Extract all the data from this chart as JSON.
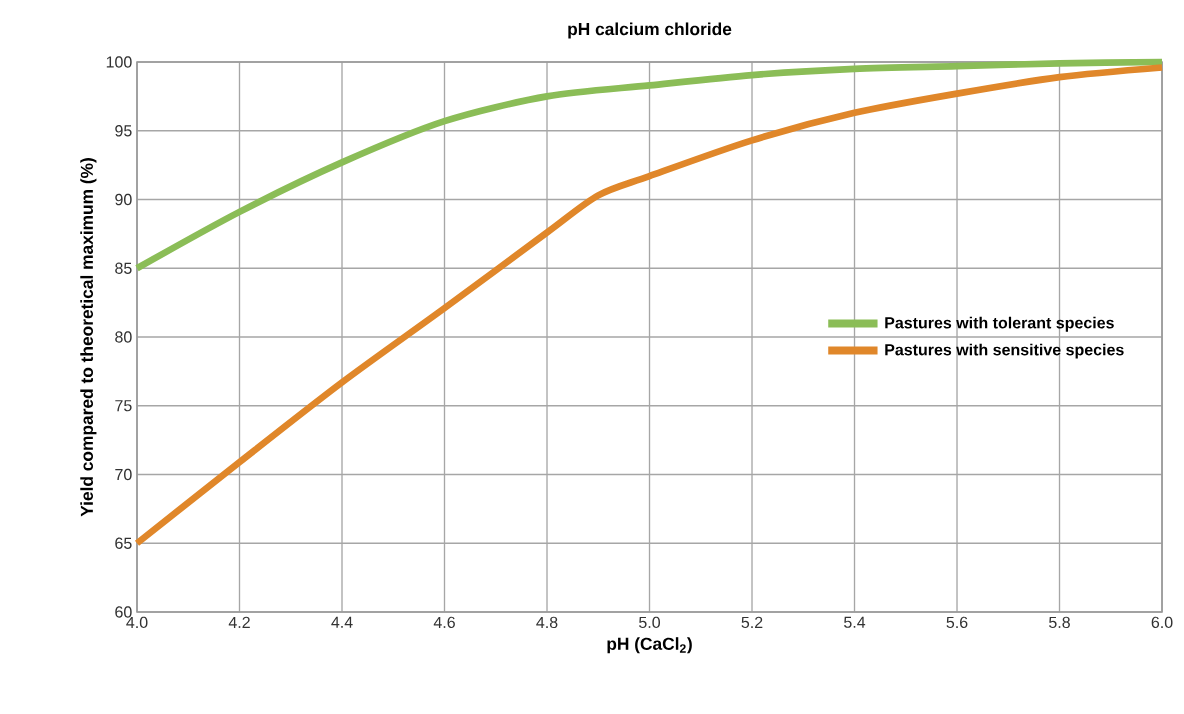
{
  "chart_data": {
    "type": "line",
    "title": "pH calcium chloride",
    "xlabel": "pH (CaCl$_{2}$)",
    "ylabel": "Yield compared to theoretical maximum (%)",
    "xlim": [
      4,
      6
    ],
    "ylim": [
      60,
      100
    ],
    "xticks": [
      {
        "value": 4,
        "label": "4.0"
      },
      4.2,
      4.4,
      4.6,
      4.8,
      {
        "value": 5,
        "label": "5.0"
      },
      5.2,
      5.4,
      5.6,
      5.8,
      {
        "value": 6,
        "label": "6.0"
      }
    ],
    "yticks": [
      60,
      65,
      70,
      75,
      80,
      85,
      90,
      95,
      100
    ],
    "grid": true,
    "legend": "right",
    "marker": "none",
    "line_style": "solid",
    "series": [
      {
        "name": "Pastures with tolerant species",
        "color": "#8bbd57",
        "x": [
          4.0,
          4.2,
          4.4,
          4.6,
          4.8,
          5.0,
          5.2,
          5.4,
          5.6,
          5.8,
          6.0
        ],
        "values": [
          85,
          89.1,
          92.7,
          95.7,
          97.5,
          98.3,
          99.05,
          99.5,
          99.7,
          99.9,
          100
        ]
      },
      {
        "name": "Pastures with sensitive species",
        "color": "#e0872a",
        "x": [
          4.0,
          4.2,
          4.4,
          4.6,
          4.8,
          4.9,
          5.0,
          5.2,
          5.4,
          5.6,
          5.8,
          6.0
        ],
        "values": [
          65,
          70.9,
          76.7,
          82.1,
          87.6,
          90.3,
          91.7,
          94.3,
          96.3,
          97.7,
          98.9,
          99.6
        ]
      }
    ]
  }
}
